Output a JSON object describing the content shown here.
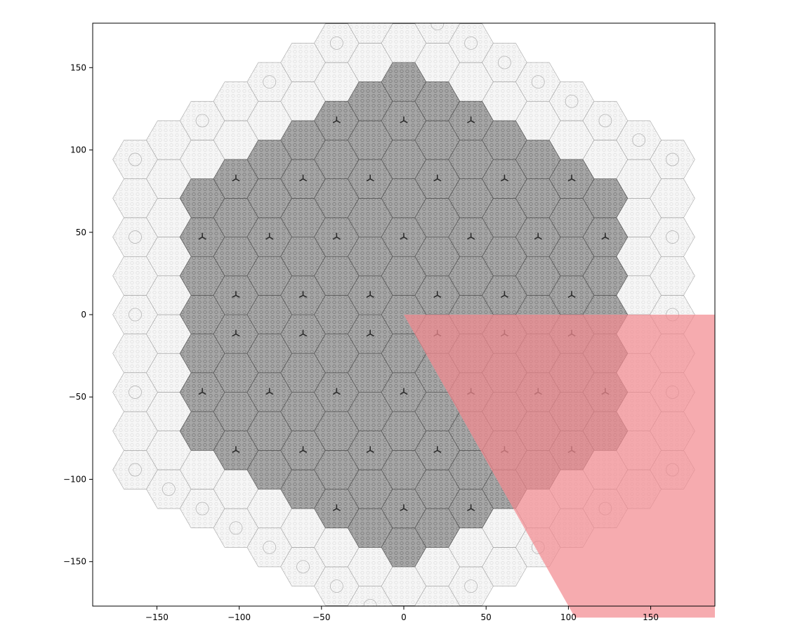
{
  "chart_data": {
    "type": "other",
    "description_type": "hexagonal reactor core geometry plot",
    "x_ticks": [
      -150,
      -100,
      -50,
      0,
      50,
      100,
      150
    ],
    "y_ticks": [
      150,
      100,
      50,
      0,
      -50,
      -100,
      -150
    ],
    "x_tick_labels": [
      "−150",
      "−100",
      "−50",
      "0",
      "50",
      "100",
      "150"
    ],
    "y_tick_labels": [
      "150",
      "100",
      "50",
      "0",
      "−50",
      "−100",
      "−150"
    ],
    "xlim": [
      -189,
      189
    ],
    "ylim": [
      -177,
      177
    ],
    "grid": false,
    "highlight_region": {
      "shape": "wedge",
      "vertices": [
        [
          0,
          0
        ],
        [
          189,
          0
        ],
        [
          189,
          -184
        ],
        [
          104,
          -184
        ]
      ],
      "color": "#f28a90"
    },
    "colors": {
      "core_fill": "#a6a6a6",
      "core_line": "#4a4a4a",
      "reflector_fill": "#f4f4f4",
      "reflector_line": "#8a8a8a",
      "highlight": "#f28a90"
    }
  }
}
